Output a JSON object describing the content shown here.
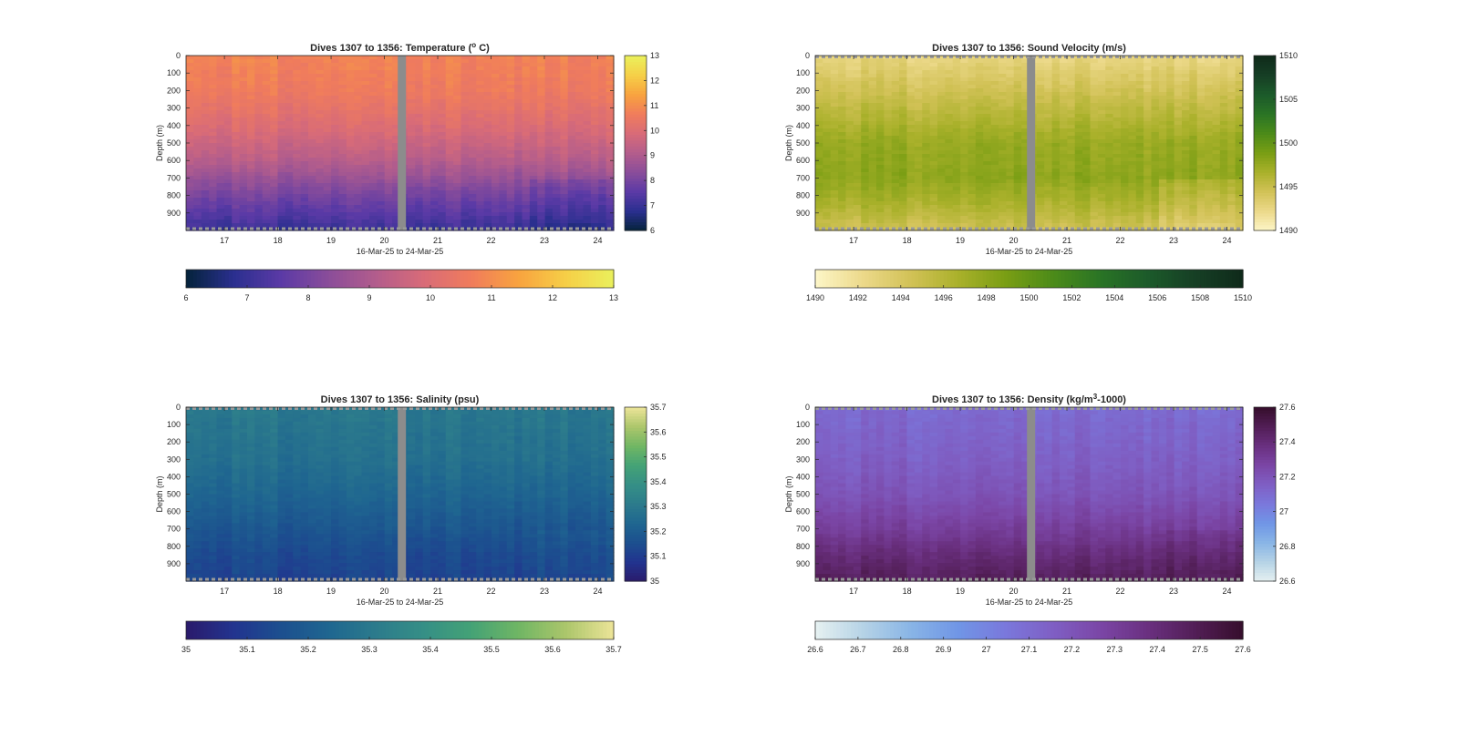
{
  "figure": {
    "panels": [
      {
        "id": "temperature",
        "title_main": "Dives 1307 to 1356: Temperature (",
        "title_sup": "o",
        "title_tail": " C)",
        "colormap": "thermal",
        "cmin": 6,
        "cmax": 13,
        "side_ticks": [
          "13",
          "12",
          "11",
          "10",
          "9",
          "8",
          "7",
          "6"
        ],
        "bottom_ticks": [
          "6",
          "7",
          "8",
          "9",
          "10",
          "11",
          "12",
          "13"
        ]
      },
      {
        "id": "sound-velocity",
        "title_main": "Dives 1307 to 1356: Sound Velocity (m/s)",
        "title_sup": "",
        "title_tail": "",
        "colormap": "speed",
        "cmin": 1490,
        "cmax": 1510,
        "side_ticks": [
          "1510",
          "1505",
          "1500",
          "1495",
          "1490"
        ],
        "bottom_ticks": [
          "1490",
          "1492",
          "1494",
          "1496",
          "1498",
          "1500",
          "1502",
          "1504",
          "1506",
          "1508",
          "1510"
        ]
      },
      {
        "id": "salinity",
        "title_main": "Dives 1307 to 1356: Salinity (psu)",
        "title_sup": "",
        "title_tail": "",
        "colormap": "haline",
        "cmin": 35,
        "cmax": 35.7,
        "side_ticks": [
          "35.7",
          "35.6",
          "35.5",
          "35.4",
          "35.3",
          "35.2",
          "35.1",
          "35"
        ],
        "bottom_ticks": [
          "35",
          "35.1",
          "35.2",
          "35.3",
          "35.4",
          "35.5",
          "35.6",
          "35.7"
        ]
      },
      {
        "id": "density",
        "title_main": "Dives 1307 to 1356: Density (kg/m",
        "title_sup": "3",
        "title_tail": "-1000)",
        "colormap": "dense",
        "cmin": 26.6,
        "cmax": 27.6,
        "side_ticks": [
          "27.6",
          "27.4",
          "27.2",
          "27",
          "26.8",
          "26.6"
        ],
        "bottom_ticks": [
          "26.6",
          "26.7",
          "26.8",
          "26.9",
          "27",
          "27.1",
          "27.2",
          "27.3",
          "27.4",
          "27.5",
          "27.6"
        ]
      }
    ],
    "ylabel": "Depth (m)",
    "xlabel": "16-Mar-25 to 24-Mar-25",
    "y_ticks": [
      "0",
      "100",
      "200",
      "300",
      "400",
      "500",
      "600",
      "700",
      "800",
      "900"
    ],
    "x_ticks": [
      "17",
      "18",
      "19",
      "20",
      "21",
      "22",
      "23",
      "24"
    ]
  },
  "chart_data": [
    {
      "type": "heatmap",
      "title": "Dives 1307 to 1356: Temperature (o C)",
      "xlabel": "16-Mar-25 to 24-Mar-25",
      "ylabel": "Depth (m)",
      "x_range": [
        "16-Mar-25",
        "24-Mar-25"
      ],
      "x_ticks": [
        17,
        18,
        19,
        20,
        21,
        22,
        23,
        24
      ],
      "ylim": [
        0,
        1000
      ],
      "y_reversed": true,
      "colorbar_range": [
        6,
        13
      ],
      "depth_profile": [
        {
          "depth": 0,
          "value": 10.8
        },
        {
          "depth": 200,
          "value": 10.6
        },
        {
          "depth": 400,
          "value": 10.0
        },
        {
          "depth": 500,
          "value": 9.6
        },
        {
          "depth": 600,
          "value": 9.2
        },
        {
          "depth": 700,
          "value": 8.6
        },
        {
          "depth": 800,
          "value": 8.0
        },
        {
          "depth": 900,
          "value": 7.5
        },
        {
          "depth": 1000,
          "value": 7.0
        }
      ],
      "data_gap_date": "20-Mar-25"
    },
    {
      "type": "heatmap",
      "title": "Dives 1307 to 1356: Sound Velocity (m/s)",
      "xlabel": "16-Mar-25 to 24-Mar-25",
      "ylabel": "Depth (m)",
      "x_range": [
        "16-Mar-25",
        "24-Mar-25"
      ],
      "x_ticks": [
        17,
        18,
        19,
        20,
        21,
        22,
        23,
        24
      ],
      "ylim": [
        0,
        1000
      ],
      "y_reversed": true,
      "colorbar_range": [
        1490,
        1510
      ],
      "depth_profile": [
        {
          "depth": 0,
          "value": 1492.5
        },
        {
          "depth": 200,
          "value": 1494.5
        },
        {
          "depth": 400,
          "value": 1496.5
        },
        {
          "depth": 500,
          "value": 1497.5
        },
        {
          "depth": 700,
          "value": 1498.0
        },
        {
          "depth": 850,
          "value": 1496.5
        },
        {
          "depth": 1000,
          "value": 1494.5
        }
      ],
      "data_gap_date": "20-Mar-25"
    },
    {
      "type": "heatmap",
      "title": "Dives 1307 to 1356: Salinity (psu)",
      "xlabel": "16-Mar-25 to 24-Mar-25",
      "ylabel": "Depth (m)",
      "x_range": [
        "16-Mar-25",
        "24-Mar-25"
      ],
      "x_ticks": [
        17,
        18,
        19,
        20,
        21,
        22,
        23,
        24
      ],
      "ylim": [
        0,
        1000
      ],
      "y_reversed": true,
      "colorbar_range": [
        35,
        35.7
      ],
      "depth_profile": [
        {
          "depth": 0,
          "value": 35.3
        },
        {
          "depth": 300,
          "value": 35.27
        },
        {
          "depth": 500,
          "value": 35.23
        },
        {
          "depth": 700,
          "value": 35.18
        },
        {
          "depth": 850,
          "value": 35.14
        },
        {
          "depth": 1000,
          "value": 35.12
        }
      ],
      "data_gap_date": "20-Mar-25"
    },
    {
      "type": "heatmap",
      "title": "Dives 1307 to 1356: Density (kg/m3-1000)",
      "xlabel": "16-Mar-25 to 24-Mar-25",
      "ylabel": "Depth (m)",
      "x_range": [
        "16-Mar-25",
        "24-Mar-25"
      ],
      "x_ticks": [
        17,
        18,
        19,
        20,
        21,
        22,
        23,
        24
      ],
      "ylim": [
        0,
        1000
      ],
      "y_reversed": true,
      "colorbar_range": [
        26.6,
        27.6
      ],
      "depth_profile": [
        {
          "depth": 0,
          "value": 27.1
        },
        {
          "depth": 300,
          "value": 27.15
        },
        {
          "depth": 500,
          "value": 27.2
        },
        {
          "depth": 700,
          "value": 27.3
        },
        {
          "depth": 850,
          "value": 27.4
        },
        {
          "depth": 1000,
          "value": 27.48
        }
      ],
      "data_gap_date": "20-Mar-25"
    }
  ]
}
